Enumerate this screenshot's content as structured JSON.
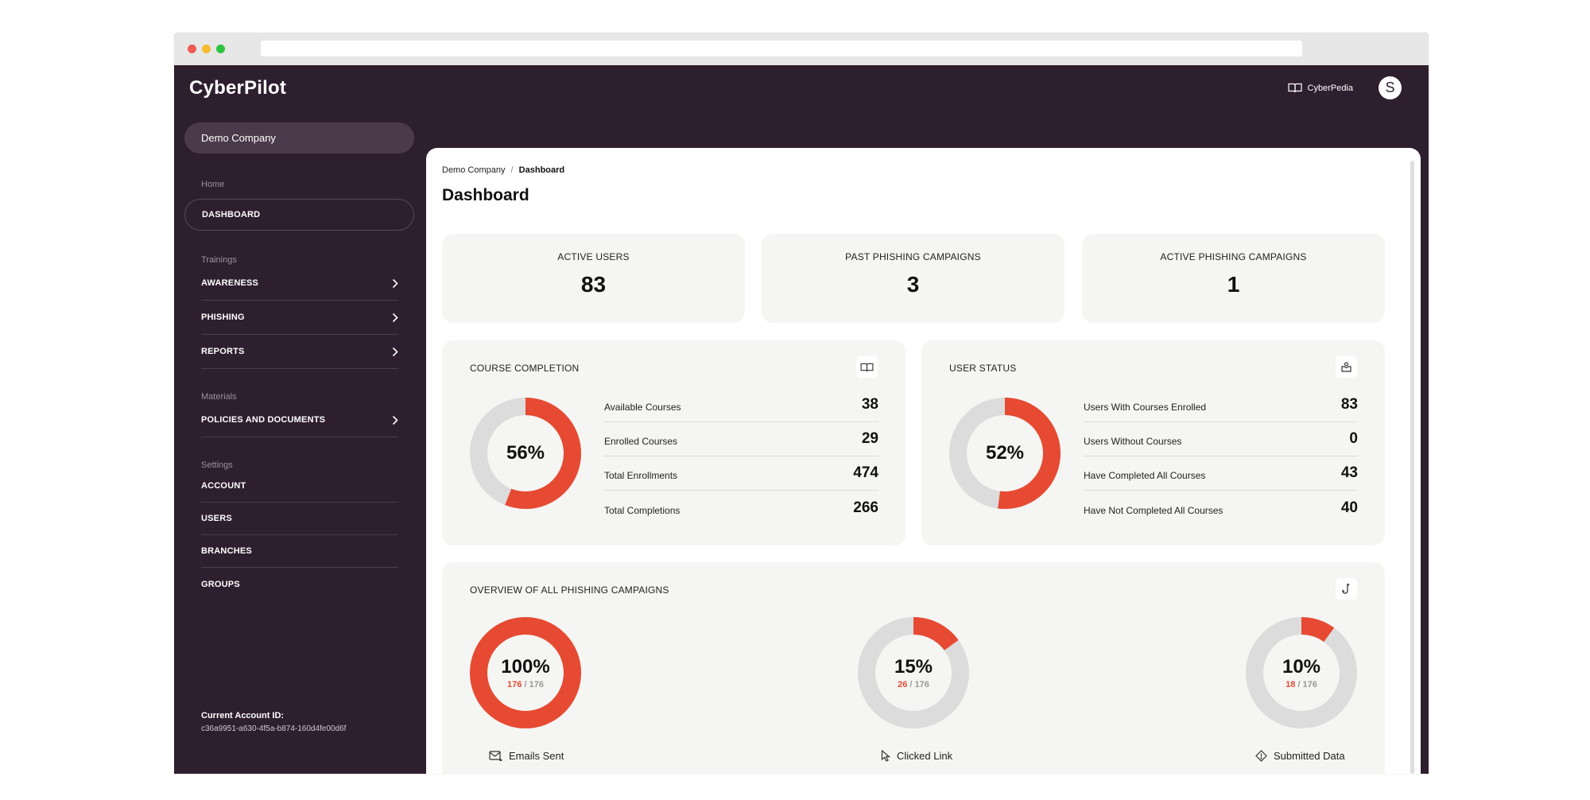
{
  "app": {
    "logo": "CyberPilot",
    "cyberpedia_label": "CyberPedia",
    "avatar_initial": "S"
  },
  "sidebar": {
    "company": "Demo Company",
    "home_label": "Home",
    "dashboard": "DASHBOARD",
    "trainings_label": "Trainings",
    "trainings": [
      "AWARENESS",
      "PHISHING",
      "REPORTS"
    ],
    "materials_label": "Materials",
    "materials": [
      "POLICIES AND DOCUMENTS"
    ],
    "settings_label": "Settings",
    "settings": [
      "ACCOUNT",
      "USERS",
      "BRANCHES",
      "GROUPS"
    ],
    "account_title": "Current Account ID:",
    "account_id": "c36a9951-a630-4f5a-b874-160d4fe00d6f"
  },
  "breadcrumb": {
    "root": "Demo Company",
    "separator": "/",
    "current": "Dashboard"
  },
  "page_title": "Dashboard",
  "stats": [
    {
      "label": "ACTIVE USERS",
      "value": "83"
    },
    {
      "label": "PAST PHISHING CAMPAIGNS",
      "value": "3"
    },
    {
      "label": "ACTIVE PHISHING CAMPAIGNS",
      "value": "1"
    }
  ],
  "course_completion": {
    "title": "COURSE COMPLETION",
    "icon": "book-icon",
    "percent_label": "56%",
    "percent": 56,
    "rows": [
      {
        "label": "Available Courses",
        "value": "38"
      },
      {
        "label": "Enrolled Courses",
        "value": "29"
      },
      {
        "label": "Total Enrollments",
        "value": "474"
      },
      {
        "label": "Total Completions",
        "value": "266"
      }
    ]
  },
  "user_status": {
    "title": "USER STATUS",
    "icon": "user-box-icon",
    "percent_label": "52%",
    "percent": 52,
    "rows": [
      {
        "label": "Users With Courses Enrolled",
        "value": "83"
      },
      {
        "label": "Users Without Courses",
        "value": "0"
      },
      {
        "label": "Have Completed All Courses",
        "value": "43"
      },
      {
        "label": "Have Not Completed All Courses",
        "value": "40"
      }
    ]
  },
  "phishing_overview": {
    "title": "OVERVIEW OF ALL PHISHING CAMPAIGNS",
    "icon": "hook-icon",
    "items": [
      {
        "percent_label": "100%",
        "percent": 100,
        "hit": "176",
        "sep": " / ",
        "total": "176",
        "label": "Emails Sent",
        "icon": "mail-icon"
      },
      {
        "percent_label": "15%",
        "percent": 15,
        "hit": "26",
        "sep": " / ",
        "total": "176",
        "label": "Clicked Link",
        "icon": "cursor-icon"
      },
      {
        "percent_label": "10%",
        "percent": 10,
        "hit": "18",
        "sep": " / ",
        "total": "176",
        "label": "Submitted Data",
        "icon": "warning-diamond-icon"
      }
    ]
  },
  "colors": {
    "accent": "#e64a32",
    "track": "#dcdcdc",
    "sidebar_bg": "#2e1f2f",
    "card_bg": "#f5f5f3"
  }
}
